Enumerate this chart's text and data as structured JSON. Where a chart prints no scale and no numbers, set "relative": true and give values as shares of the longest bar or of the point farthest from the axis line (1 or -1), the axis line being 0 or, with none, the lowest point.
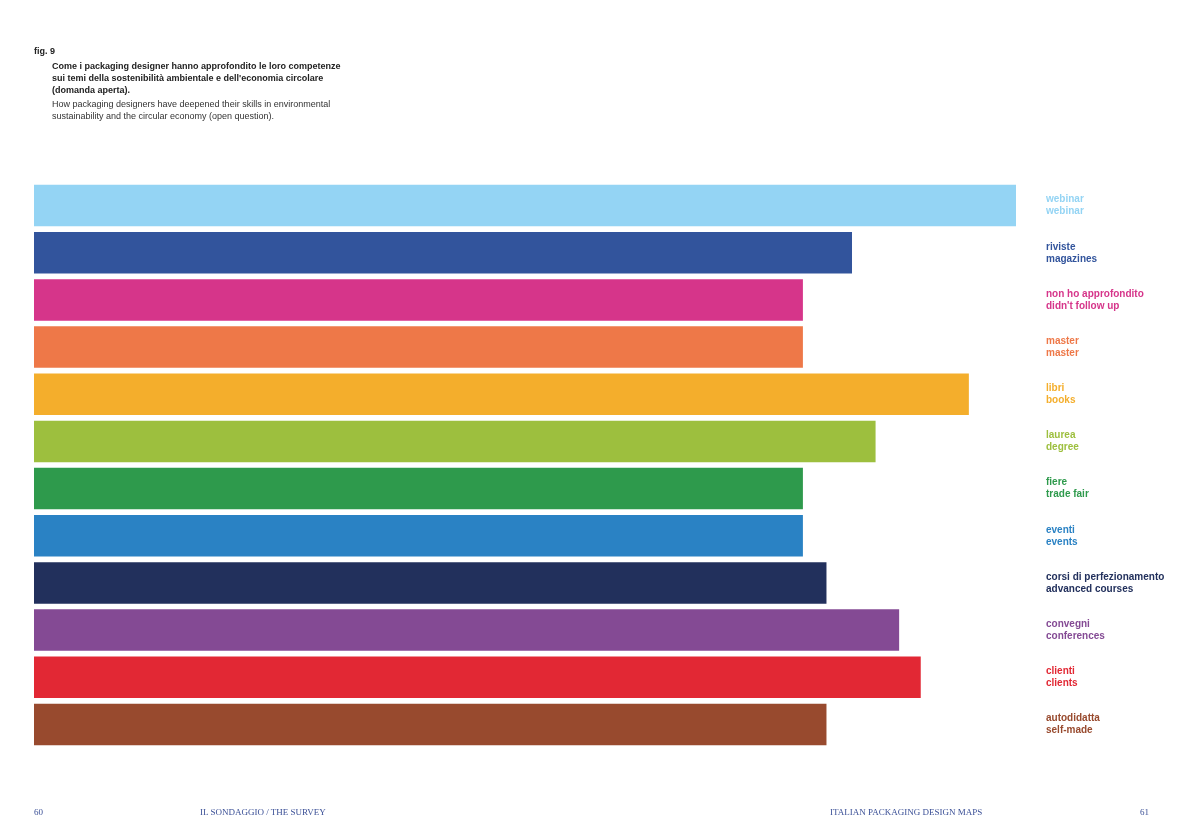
{
  "chart_data": {
    "type": "bar",
    "orientation": "horizontal",
    "relative": true,
    "title": "Come i packaging designer hanno approfondito le loro competenze sui temi della sostenibilità ambientale e dell'economia circolare (domanda aperta).",
    "subtitle": "How packaging designers have deepened their skills in environmental sustainability and the circular economy (open question).",
    "categories": [
      "webinar\nwebinar",
      "riviste\nmagazines",
      "non ho approfondito\ndidn't follow up",
      "master\nmaster",
      "libri\nbooks",
      "laurea\ndegree",
      "fiere\ntrade fair",
      "eventi\nevents",
      "corsi di perfezionamento\nadvanced courses",
      "convegni\nconferences",
      "clienti\nclients",
      "autodidatta\nself-made"
    ],
    "values": [
      1,
      0.833,
      0.783,
      0.783,
      0.952,
      0.857,
      0.783,
      0.783,
      0.807,
      0.881,
      0.903,
      0.807
    ],
    "colors": [
      "#94d4f4",
      "#32549c",
      "#d6358a",
      "#ee7848",
      "#f4ae2c",
      "#9dbf3e",
      "#2e9a4c",
      "#2a82c4",
      "#22305c",
      "#844a94",
      "#e22834",
      "#984a2e"
    ],
    "legend": false,
    "annotations": [
      "fig. 9",
      "60",
      "IL SONDAGGIO / THE SURVEY",
      "ITALIAN PACKAGING DESIGN MAPS",
      "61"
    ]
  }
}
